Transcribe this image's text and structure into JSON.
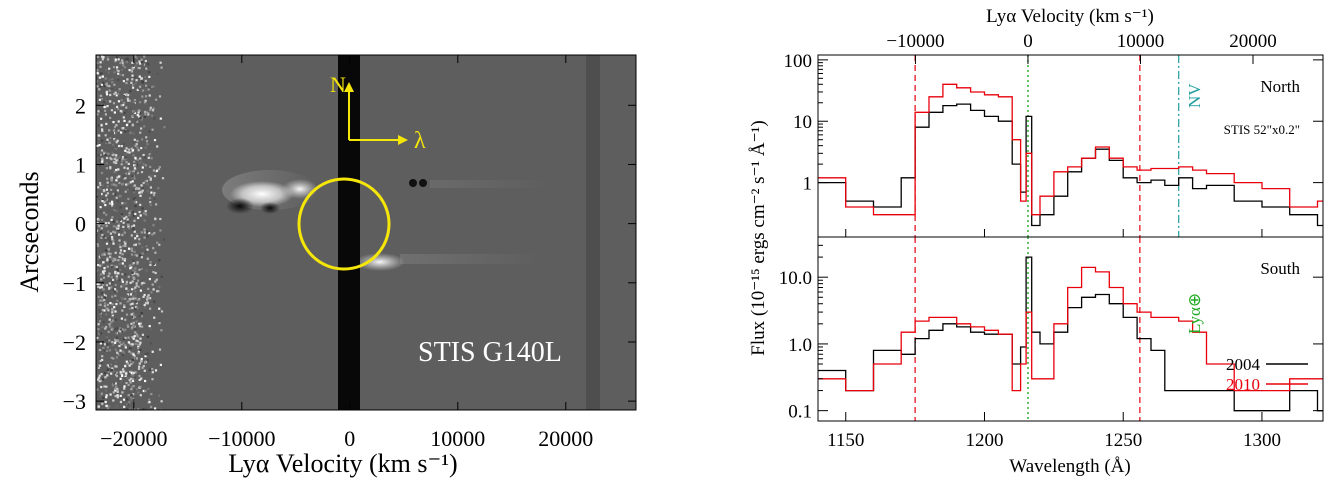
{
  "colors": {
    "epoch_2004": "#000000",
    "epoch_2010": "#e8000b",
    "marker_green": "#22aa22",
    "marker_red": "#e8000b",
    "marker_teal": "#1e9c9c",
    "annotation_yellow": "#f5e60a",
    "image_background": "#5e5e5e"
  },
  "chart_data": [
    {
      "type": "heatmap",
      "title": "",
      "panel_label": "STIS G140L",
      "xlabel": "Lyα Velocity (km s⁻¹)",
      "ylabel": "Arcseconds",
      "xlim": [
        -23500,
        26500
      ],
      "ylim": [
        -3.15,
        2.85
      ],
      "x_ticks": [
        -20000,
        -10000,
        0,
        10000,
        20000
      ],
      "x_tick_labels": [
        "−20000",
        "−10000",
        "0",
        "10000",
        "20000"
      ],
      "y_ticks": [
        2,
        1,
        0,
        -1,
        -2,
        -3
      ],
      "y_tick_labels": [
        "2",
        "1",
        "0",
        "−1",
        "−2",
        "−3"
      ],
      "compass": {
        "north_label": "N",
        "dispersion_label": "λ"
      },
      "features": [
        {
          "name": "blue-shifted emission",
          "x": -6500,
          "y": 0.35
        },
        {
          "name": "red-shifted emission",
          "x": 5000,
          "y": -0.6
        }
      ],
      "aperture_circle": {
        "x": 0,
        "y": 0,
        "radius_arcsec": 0.75
      }
    },
    {
      "type": "line",
      "title": "",
      "xlabel": "Wavelength (Å)",
      "top_axis_label": "Lyα Velocity (km s⁻¹)",
      "ylabel": "Flux (10⁻¹⁵ ergs cm⁻² s⁻¹ Å⁻¹)",
      "xlim": [
        1140,
        1322
      ],
      "x_ticks": [
        1150,
        1200,
        1250,
        1300
      ],
      "top_axis_ticks_kms": [
        -10000,
        0,
        10000,
        20000
      ],
      "top_axis_tick_labels": [
        "−10000",
        "0",
        "10000",
        "20000"
      ],
      "vertical_markers_angstrom": {
        "red_dashed": [
          1175,
          1256
        ],
        "green_dotted": 1215.67,
        "teal_dashdot": 1270
      },
      "legend_placement": "bottom-right",
      "panels": [
        {
          "label": "North",
          "aperture_note": "STIS 52\"x0.2\"",
          "ion_label": "NV",
          "y_scale": "log",
          "ylim": [
            0.13,
            120
          ],
          "y_tick_labels": [
            "100",
            "10",
            "1"
          ],
          "series": [
            {
              "name": "2004",
              "x": [
                1140,
                1150,
                1160,
                1170,
                1175,
                1180,
                1185,
                1190,
                1195,
                1200,
                1205,
                1210,
                1213,
                1215,
                1217,
                1220,
                1225,
                1230,
                1235,
                1240,
                1245,
                1250,
                1255,
                1260,
                1265,
                1270,
                1275,
                1280,
                1290,
                1300,
                1310,
                1320
              ],
              "y": [
                1.0,
                0.5,
                0.4,
                1.2,
                8,
                14,
                18,
                19,
                15,
                12,
                10,
                2,
                0.7,
                12,
                0.2,
                0.3,
                0.6,
                1.5,
                2.5,
                3.5,
                2.3,
                1.2,
                1.0,
                1.1,
                0.9,
                1.2,
                0.8,
                0.9,
                0.5,
                0.4,
                0.3,
                0.2
              ]
            },
            {
              "name": "2010",
              "x": [
                1140,
                1150,
                1160,
                1170,
                1175,
                1180,
                1185,
                1190,
                1195,
                1200,
                1205,
                1210,
                1213,
                1215,
                1217,
                1220,
                1225,
                1230,
                1235,
                1240,
                1245,
                1250,
                1255,
                1260,
                1265,
                1270,
                1275,
                1280,
                1290,
                1300,
                1310,
                1320
              ],
              "y": [
                1.2,
                0.4,
                0.3,
                0.3,
                14,
                25,
                40,
                35,
                30,
                27,
                25,
                5,
                0.5,
                3,
                0.3,
                0.6,
                1.5,
                1.8,
                2.5,
                3.8,
                2.5,
                1.8,
                1.6,
                1.7,
                1.7,
                1.8,
                1.6,
                1.4,
                1.0,
                0.8,
                0.4,
                0.5
              ]
            }
          ]
        },
        {
          "label": "South",
          "marker_label": "Lyα⊕",
          "y_scale": "log",
          "ylim": [
            0.07,
            40
          ],
          "y_tick_labels": [
            "10.0",
            "1.0",
            "0.1"
          ],
          "series": [
            {
              "name": "2004",
              "x": [
                1140,
                1150,
                1160,
                1170,
                1175,
                1180,
                1185,
                1190,
                1195,
                1200,
                1205,
                1210,
                1213,
                1215,
                1217,
                1220,
                1225,
                1230,
                1235,
                1240,
                1245,
                1250,
                1255,
                1260,
                1265,
                1270,
                1275,
                1280,
                1290,
                1300,
                1310,
                1320
              ],
              "y": [
                0.4,
                0.2,
                0.8,
                0.7,
                1.2,
                1.6,
                2.0,
                1.8,
                1.5,
                1.4,
                1.4,
                0.5,
                0.9,
                20,
                1.5,
                1.0,
                1.5,
                3.5,
                5.0,
                5.5,
                4.0,
                2.5,
                1.2,
                0.8,
                0.2,
                0.2,
                0.2,
                0.2,
                0.1,
                0.1,
                0.2,
                0.1
              ]
            },
            {
              "name": "2010",
              "x": [
                1140,
                1150,
                1160,
                1170,
                1175,
                1180,
                1185,
                1190,
                1195,
                1200,
                1205,
                1210,
                1213,
                1215,
                1217,
                1220,
                1225,
                1230,
                1235,
                1240,
                1245,
                1250,
                1255,
                1260,
                1265,
                1270,
                1275,
                1280,
                1290,
                1300,
                1310,
                1320
              ],
              "y": [
                0.3,
                0.2,
                0.5,
                1.5,
                2.2,
                2.5,
                2.5,
                2.0,
                1.8,
                1.6,
                1.4,
                0.2,
                0.5,
                3,
                0.3,
                0.3,
                2.0,
                7.0,
                14,
                12,
                7,
                4,
                3,
                2.5,
                2.5,
                2.2,
                1.5,
                0.5,
                0.2,
                0.2,
                0.3,
                0.3
              ]
            }
          ]
        }
      ]
    }
  ]
}
